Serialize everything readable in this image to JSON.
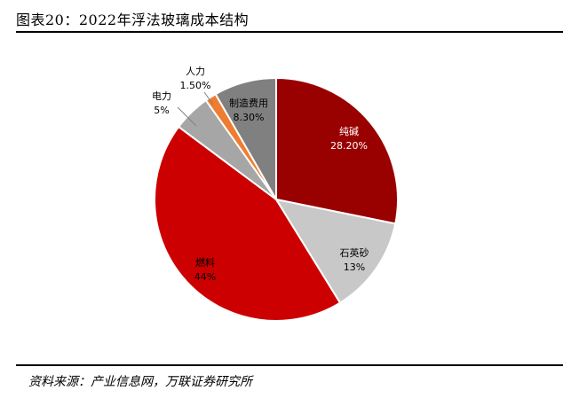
{
  "figure": {
    "title": "图表20：2022年浮法玻璃成本结构",
    "source": "资料来源：产业信息网，万联证券研究所"
  },
  "chart_data": {
    "type": "pie",
    "title": "",
    "start_angle_deg": 0,
    "direction": "clockwise",
    "slices": [
      {
        "name": "纯碱",
        "value": 28.2,
        "label": "28.20%",
        "color": "#990000",
        "text_color": "#ffffff"
      },
      {
        "name": "石英砂",
        "value": 13,
        "label": "13%",
        "color": "#c8c8c8",
        "text_color": "#000000"
      },
      {
        "name": "燃料",
        "value": 44,
        "label": "44%",
        "color": "#cc0000",
        "text_color": "#000000"
      },
      {
        "name": "电力",
        "value": 5,
        "label": "5%",
        "color": "#a6a6a6",
        "text_color": "#000000"
      },
      {
        "name": "人力",
        "value": 1.5,
        "label": "1.50%",
        "color": "#ee7d31",
        "text_color": "#000000"
      },
      {
        "name": "制造费用",
        "value": 8.3,
        "label": "8.30%",
        "color": "#808080",
        "text_color": "#000000"
      }
    ]
  }
}
